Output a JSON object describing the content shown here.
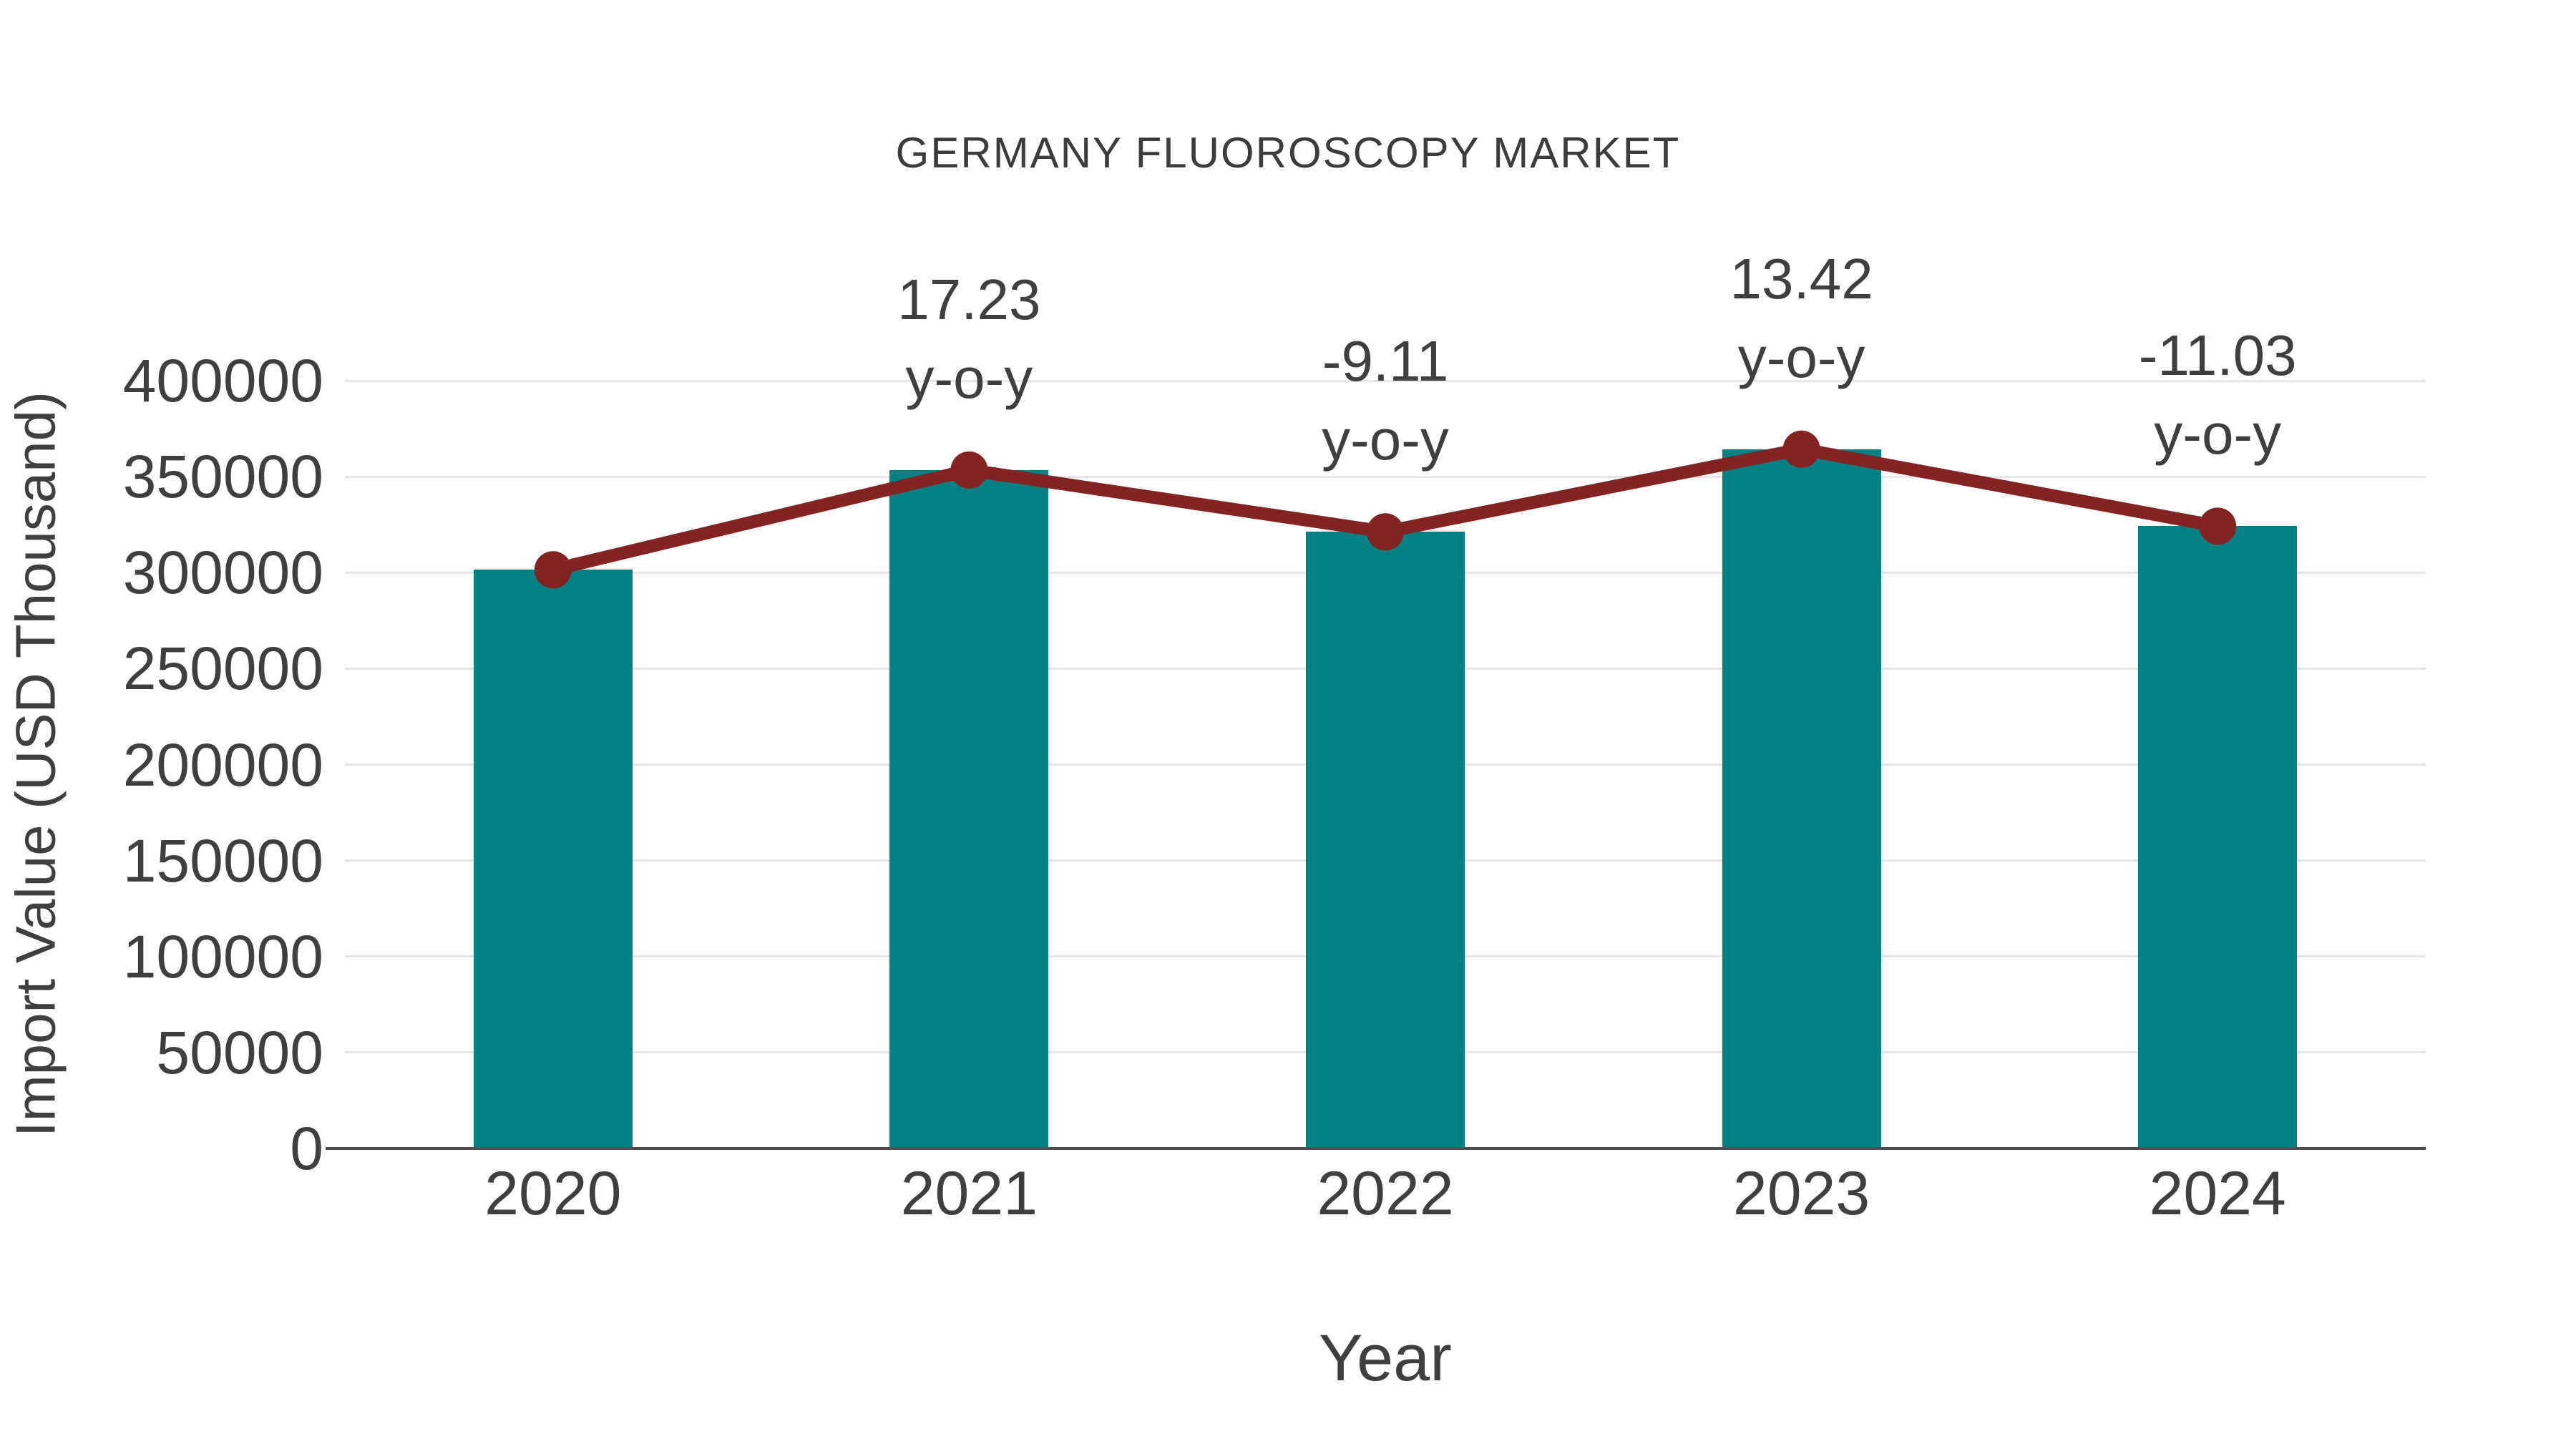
{
  "page": {
    "background": "#ffffff"
  },
  "colors": {
    "bar": "#028083",
    "line": "#832322",
    "marker": "#832322",
    "grid": "#e6e6e6",
    "axis": "#4f4f51",
    "text": "#3f3f3f"
  },
  "chart_data": {
    "type": "bar",
    "title": "GERMANY FLUOROSCOPY MARKET",
    "xlabel": "Year",
    "ylabel": "Import Value (USD Thousand)",
    "categories": [
      "2020",
      "2021",
      "2022",
      "2023",
      "2024"
    ],
    "series": [
      {
        "name": "Import Value (USD Thousand)",
        "type": "bar",
        "values": [
          301500,
          353450,
          321250,
          364360,
          324170
        ]
      },
      {
        "name": "y-o-y growth (%)",
        "type": "line",
        "values": [
          null,
          17.23,
          -9.11,
          13.42,
          -11.03
        ]
      }
    ],
    "annotations": [
      {
        "category": "2021",
        "lines": [
          "17.23",
          "y-o-y"
        ]
      },
      {
        "category": "2022",
        "lines": [
          "-9.11",
          "y-o-y"
        ]
      },
      {
        "category": "2023",
        "lines": [
          "13.42",
          "y-o-y"
        ]
      },
      {
        "category": "2024",
        "lines": [
          "-11.03",
          "y-o-y"
        ]
      }
    ],
    "ylim": [
      0,
      400000
    ],
    "yticks": [
      0,
      50000,
      100000,
      150000,
      200000,
      250000,
      300000,
      350000,
      400000
    ],
    "grid": true,
    "legend": "none"
  }
}
